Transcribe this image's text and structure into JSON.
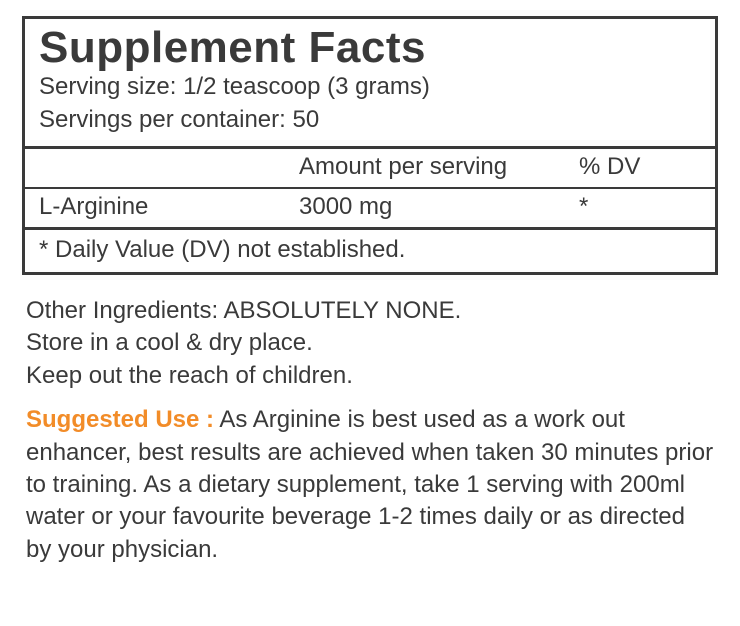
{
  "panel": {
    "title": "Supplement Facts",
    "serving_size_label": "Serving size:",
    "serving_size_value": "1/2 teascoop (3 grams)",
    "servings_per_container_label": "Servings per container:",
    "servings_per_container_value": "50",
    "header_amount": "Amount per serving",
    "header_dv": "% DV",
    "nutrient_name": "L-Arginine",
    "nutrient_amount": "3000 mg",
    "nutrient_dv": "*",
    "footnote": "* Daily Value (DV) not established.",
    "border_color": "#3a3a3a",
    "text_color": "#3a3a3a",
    "title_fontsize": 44,
    "body_fontsize": 24
  },
  "other": {
    "line1": "Other Ingredients: ABSOLUTELY NONE.",
    "line2": "Store in a cool & dry place.",
    "line3": "Keep out the reach of children."
  },
  "suggested": {
    "label": "Suggested Use :",
    "label_color": "#f28c28",
    "text": " As Arginine is best used as a work out enhancer, best results are achieved when taken 30 minutes prior to training. As a dietary supplement, take 1 serving with 200ml water or your favourite beverage 1-2 times daily or as directed by your physician."
  }
}
